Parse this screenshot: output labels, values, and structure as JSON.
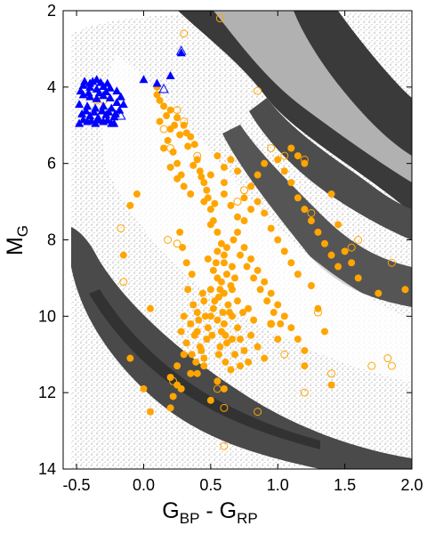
{
  "chart_data": {
    "type": "scatter",
    "title": "",
    "xlabel": {
      "main": "G",
      "sub1": "BP",
      "mid": " - G",
      "sub2": "RP"
    },
    "ylabel": {
      "main": "M",
      "sub": "G"
    },
    "xlim": [
      -0.6,
      2.0
    ],
    "ylim": [
      14,
      2
    ],
    "y_inverted": true,
    "grid": false,
    "legend": "none",
    "x_ticks": [
      {
        "value": -0.5,
        "label": "-0.5"
      },
      {
        "value": 0.0,
        "label": "0.0"
      },
      {
        "value": 0.5,
        "label": "0.5"
      },
      {
        "value": 1.0,
        "label": "1.0"
      },
      {
        "value": 1.5,
        "label": "1.5"
      },
      {
        "value": 2.0,
        "label": "2.0"
      }
    ],
    "y_ticks": [
      {
        "value": 2,
        "label": "2"
      },
      {
        "value": 4,
        "label": "4"
      },
      {
        "value": 6,
        "label": "6"
      },
      {
        "value": 8,
        "label": "8"
      },
      {
        "value": 10,
        "label": "10"
      },
      {
        "value": 12,
        "label": "12"
      },
      {
        "value": 14,
        "label": "14"
      }
    ],
    "colors": {
      "background_density": "#555555",
      "orange": "#FFA500",
      "blue": "#0000FF"
    },
    "series": [
      {
        "marker": "filled-circle",
        "color": "#FFA500",
        "points": [
          [
            0.1,
            4.2
          ],
          [
            0.15,
            4.5
          ],
          [
            0.12,
            4.9
          ],
          [
            0.2,
            5.1
          ],
          [
            0.18,
            5.4
          ],
          [
            0.22,
            5.7
          ],
          [
            0.25,
            6.0
          ],
          [
            0.28,
            6.3
          ],
          [
            0.3,
            6.6
          ],
          [
            0.35,
            6.8
          ],
          [
            0.32,
            5.2
          ],
          [
            0.38,
            5.5
          ],
          [
            0.4,
            5.9
          ],
          [
            0.42,
            6.2
          ],
          [
            0.45,
            6.5
          ],
          [
            0.48,
            6.9
          ],
          [
            0.5,
            7.2
          ],
          [
            0.52,
            7.5
          ],
          [
            0.55,
            7.8
          ],
          [
            0.58,
            8.1
          ],
          [
            0.2,
            4.6
          ],
          [
            0.25,
            4.8
          ],
          [
            0.3,
            5.0
          ],
          [
            0.35,
            5.3
          ],
          [
            0.15,
            5.6
          ],
          [
            0.2,
            6.1
          ],
          [
            0.25,
            6.4
          ],
          [
            0.6,
            6.8
          ],
          [
            0.65,
            7.1
          ],
          [
            0.7,
            7.4
          ],
          [
            0.45,
            7.0
          ],
          [
            0.5,
            7.6
          ],
          [
            0.55,
            8.3
          ],
          [
            0.6,
            8.6
          ],
          [
            0.62,
            8.9
          ],
          [
            0.65,
            9.2
          ],
          [
            0.55,
            9.0
          ],
          [
            0.5,
            9.3
          ],
          [
            0.45,
            9.6
          ],
          [
            0.4,
            9.9
          ],
          [
            0.48,
            8.5
          ],
          [
            0.52,
            8.8
          ],
          [
            0.58,
            9.1
          ],
          [
            0.6,
            9.4
          ],
          [
            0.63,
            9.7
          ],
          [
            0.66,
            10.0
          ],
          [
            0.7,
            10.3
          ],
          [
            0.72,
            10.6
          ],
          [
            0.75,
            10.9
          ],
          [
            0.78,
            11.2
          ],
          [
            0.35,
            10.2
          ],
          [
            0.38,
            10.5
          ],
          [
            0.42,
            10.8
          ],
          [
            0.45,
            11.1
          ],
          [
            0.3,
            11.0
          ],
          [
            0.25,
            11.3
          ],
          [
            0.2,
            11.6
          ],
          [
            0.28,
            11.9
          ],
          [
            0.22,
            12.1
          ],
          [
            0.35,
            11.5
          ],
          [
            0.55,
            10.1
          ],
          [
            0.58,
            10.4
          ],
          [
            0.62,
            10.7
          ],
          [
            0.68,
            11.0
          ],
          [
            0.72,
            11.3
          ],
          [
            0.8,
            10.5
          ],
          [
            0.85,
            10.8
          ],
          [
            0.9,
            11.1
          ],
          [
            0.95,
            10.2
          ],
          [
            1.0,
            10.6
          ],
          [
            0.5,
            10.0
          ],
          [
            0.52,
            9.8
          ],
          [
            0.56,
            9.5
          ],
          [
            0.6,
            10.2
          ],
          [
            0.64,
            9.9
          ],
          [
            0.48,
            10.3
          ],
          [
            0.44,
            9.4
          ],
          [
            0.66,
            9.3
          ],
          [
            0.7,
            9.6
          ],
          [
            0.74,
            9.9
          ],
          [
            0.75,
            8.2
          ],
          [
            0.8,
            8.5
          ],
          [
            0.85,
            8.8
          ],
          [
            0.9,
            9.1
          ],
          [
            0.95,
            9.4
          ],
          [
            1.0,
            9.7
          ],
          [
            1.05,
            10.0
          ],
          [
            1.1,
            10.3
          ],
          [
            1.15,
            10.6
          ],
          [
            1.2,
            10.9
          ],
          [
            0.7,
            7.8
          ],
          [
            0.75,
            7.5
          ],
          [
            0.8,
            7.2
          ],
          [
            0.85,
            7.0
          ],
          [
            0.9,
            7.3
          ],
          [
            0.95,
            7.7
          ],
          [
            1.0,
            8.0
          ],
          [
            1.05,
            8.3
          ],
          [
            1.1,
            8.6
          ],
          [
            1.15,
            8.9
          ],
          [
            1.0,
            5.9
          ],
          [
            1.05,
            6.2
          ],
          [
            1.1,
            6.5
          ],
          [
            1.15,
            6.9
          ],
          [
            1.2,
            7.2
          ],
          [
            1.25,
            7.5
          ],
          [
            1.3,
            7.8
          ],
          [
            1.35,
            8.1
          ],
          [
            1.4,
            8.4
          ],
          [
            1.45,
            8.7
          ],
          [
            0.1,
            4.0
          ],
          [
            0.12,
            4.35
          ],
          [
            0.17,
            4.75
          ],
          [
            0.23,
            5.0
          ],
          [
            0.27,
            5.25
          ],
          [
            0.33,
            5.55
          ],
          [
            0.37,
            6.05
          ],
          [
            0.43,
            6.35
          ],
          [
            0.47,
            6.7
          ],
          [
            0.53,
            7.05
          ],
          [
            -0.05,
            6.8
          ],
          [
            -0.1,
            7.1
          ],
          [
            -0.15,
            8.4
          ],
          [
            0.05,
            9.8
          ],
          [
            -0.1,
            11.1
          ],
          [
            0.0,
            11.9
          ],
          [
            0.05,
            12.5
          ],
          [
            0.2,
            12.4
          ],
          [
            0.25,
            11.8
          ],
          [
            0.4,
            11.5
          ],
          [
            0.55,
            11.7
          ],
          [
            0.65,
            11.4
          ],
          [
            0.6,
            11.9
          ],
          [
            0.5,
            12.2
          ],
          [
            0.45,
            11.3
          ],
          [
            1.25,
            9.2
          ],
          [
            1.3,
            9.8
          ],
          [
            1.35,
            10.4
          ],
          [
            1.2,
            11.3
          ],
          [
            1.4,
            11.8
          ],
          [
            0.6,
            8.4
          ],
          [
            0.62,
            8.2
          ],
          [
            0.66,
            8.7
          ],
          [
            0.68,
            9.0
          ],
          [
            0.54,
            8.6
          ],
          [
            0.57,
            9.3
          ],
          [
            0.53,
            9.6
          ],
          [
            0.59,
            9.9
          ],
          [
            0.61,
            10.5
          ],
          [
            0.57,
            10.8
          ],
          [
            0.47,
            10.6
          ],
          [
            0.43,
            10.9
          ],
          [
            0.39,
            11.2
          ],
          [
            0.41,
            10.1
          ],
          [
            0.37,
            9.7
          ],
          [
            0.33,
            9.3
          ],
          [
            0.36,
            8.9
          ],
          [
            0.32,
            8.6
          ],
          [
            0.29,
            8.2
          ],
          [
            0.27,
            7.8
          ],
          [
            0.9,
            6.0
          ],
          [
            0.85,
            6.3
          ],
          [
            0.8,
            6.6
          ],
          [
            0.75,
            6.9
          ],
          [
            0.65,
            5.9
          ],
          [
            0.6,
            6.1
          ],
          [
            0.55,
            5.8
          ],
          [
            0.5,
            6.3
          ],
          [
            0.6,
            6.5
          ],
          [
            0.7,
            6.2
          ],
          [
            1.1,
            5.6
          ],
          [
            1.15,
            5.8
          ],
          [
            1.2,
            6.0
          ],
          [
            1.4,
            6.8
          ],
          [
            1.45,
            7.6
          ],
          [
            1.5,
            8.3
          ],
          [
            1.55,
            8.6
          ],
          [
            1.6,
            9.0
          ],
          [
            1.75,
            9.4
          ],
          [
            1.95,
            9.3
          ],
          [
            0.67,
            8.0
          ],
          [
            0.72,
            8.4
          ],
          [
            0.77,
            8.7
          ],
          [
            0.82,
            9.0
          ],
          [
            0.87,
            9.3
          ],
          [
            0.92,
            9.6
          ],
          [
            0.97,
            9.9
          ],
          [
            1.02,
            10.2
          ],
          [
            0.78,
            9.8
          ],
          [
            0.82,
            10.1
          ],
          [
            0.3,
            10.0
          ],
          [
            0.28,
            10.4
          ],
          [
            0.32,
            10.7
          ],
          [
            0.36,
            11.0
          ],
          [
            0.4,
            10.4
          ],
          [
            0.46,
            10.0
          ],
          [
            0.51,
            10.5
          ],
          [
            0.56,
            11.0
          ],
          [
            0.61,
            11.2
          ],
          [
            0.66,
            10.6
          ]
        ]
      },
      {
        "marker": "open-circle",
        "color": "#FFA500",
        "points": [
          [
            0.3,
            2.6
          ],
          [
            0.57,
            2.2
          ],
          [
            0.85,
            4.1
          ],
          [
            -0.35,
            4.35
          ],
          [
            -0.3,
            4.35
          ],
          [
            0.25,
            4.6
          ],
          [
            0.3,
            4.9
          ],
          [
            0.15,
            5.1
          ],
          [
            0.2,
            5.6
          ],
          [
            0.95,
            5.6
          ],
          [
            1.05,
            5.8
          ],
          [
            1.2,
            5.9
          ],
          [
            1.25,
            7.3
          ],
          [
            1.55,
            8.2
          ],
          [
            1.6,
            8.0
          ],
          [
            1.85,
            8.6
          ],
          [
            -0.15,
            9.1
          ],
          [
            -0.17,
            7.7
          ],
          [
            0.18,
            8.0
          ],
          [
            0.25,
            8.1
          ],
          [
            0.22,
            11.7
          ],
          [
            0.55,
            11.9
          ],
          [
            0.6,
            12.4
          ],
          [
            0.6,
            13.4
          ],
          [
            0.85,
            12.5
          ],
          [
            1.2,
            12.0
          ],
          [
            1.4,
            11.5
          ],
          [
            1.7,
            11.3
          ],
          [
            1.82,
            11.1
          ],
          [
            1.85,
            11.3
          ],
          [
            1.3,
            9.9
          ],
          [
            0.95,
            10.2
          ],
          [
            1.05,
            11.0
          ],
          [
            0.7,
            7.0
          ],
          [
            0.75,
            6.7
          ],
          [
            0.4,
            5.8
          ]
        ]
      },
      {
        "marker": "filled-triangle",
        "color": "#0000FF",
        "points": [
          [
            -0.45,
            3.95
          ],
          [
            -0.4,
            4.0
          ],
          [
            -0.35,
            4.05
          ],
          [
            -0.3,
            3.98
          ],
          [
            -0.25,
            4.02
          ],
          [
            -0.45,
            4.2
          ],
          [
            -0.4,
            4.25
          ],
          [
            -0.35,
            4.3
          ],
          [
            -0.3,
            4.22
          ],
          [
            -0.25,
            4.28
          ],
          [
            -0.48,
            4.45
          ],
          [
            -0.42,
            4.5
          ],
          [
            -0.36,
            4.55
          ],
          [
            -0.3,
            4.5
          ],
          [
            -0.24,
            4.55
          ],
          [
            -0.46,
            4.7
          ],
          [
            -0.4,
            4.75
          ],
          [
            -0.34,
            4.8
          ],
          [
            -0.28,
            4.72
          ],
          [
            -0.22,
            4.78
          ],
          [
            -0.48,
            4.95
          ],
          [
            -0.42,
            4.9
          ],
          [
            -0.36,
            4.95
          ],
          [
            -0.3,
            4.9
          ],
          [
            -0.24,
            4.95
          ],
          [
            -0.2,
            4.4
          ],
          [
            -0.18,
            4.6
          ],
          [
            -0.15,
            4.45
          ],
          [
            -0.2,
            4.1
          ],
          [
            -0.44,
            3.85
          ],
          [
            -0.38,
            3.85
          ],
          [
            -0.32,
            3.88
          ],
          [
            -0.27,
            3.9
          ],
          [
            -0.47,
            4.1
          ],
          [
            -0.41,
            4.15
          ],
          [
            -0.33,
            4.15
          ],
          [
            -0.28,
            4.12
          ],
          [
            -0.43,
            4.62
          ],
          [
            -0.37,
            4.65
          ],
          [
            -0.31,
            4.62
          ],
          [
            -0.26,
            4.65
          ],
          [
            -0.45,
            4.85
          ],
          [
            -0.39,
            4.88
          ],
          [
            -0.33,
            4.86
          ],
          [
            -0.27,
            4.86
          ],
          [
            -0.21,
            4.7
          ],
          [
            -0.17,
            4.25
          ],
          [
            -0.22,
            4.95
          ],
          [
            -0.35,
            3.8
          ],
          [
            -0.4,
            3.9
          ],
          [
            0.0,
            3.8
          ],
          [
            0.1,
            3.9
          ],
          [
            0.28,
            3.1
          ],
          [
            0.2,
            3.7
          ]
        ]
      },
      {
        "marker": "open-triangle",
        "color": "#0000FF",
        "points": [
          [
            0.28,
            3.05
          ],
          [
            -0.17,
            4.75
          ],
          [
            0.15,
            4.05
          ]
        ]
      }
    ]
  }
}
